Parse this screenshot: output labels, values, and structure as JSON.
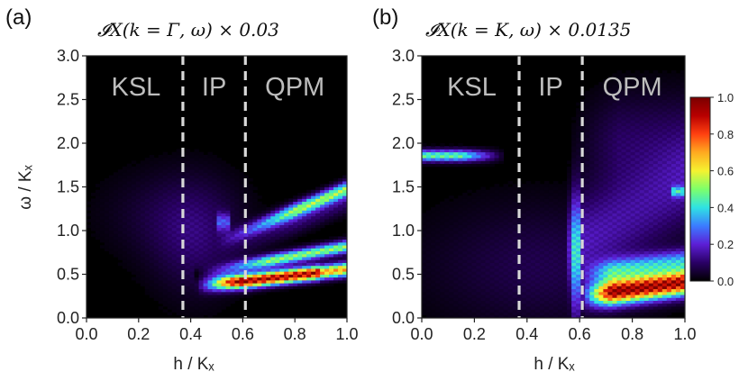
{
  "chart_data": [
    {
      "type": "heatmap",
      "panel_label": "(a)",
      "title": "𝓘X(k = Γ, ω) × 0.03",
      "xlabel": "h / Kₓ",
      "ylabel": "ω / Kₓ",
      "xlim": [
        0.0,
        1.0
      ],
      "ylim": [
        0.0,
        3.0
      ],
      "xticks": [
        "0.0",
        "0.2",
        "0.4",
        "0.6",
        "0.8",
        "1.0"
      ],
      "yticks": [
        "0.0",
        "0.5",
        "1.0",
        "1.5",
        "2.0",
        "2.5",
        "3.0"
      ],
      "phase_boundaries": [
        0.37,
        0.61
      ],
      "regions": [
        {
          "label": "KSL",
          "x": 0.19
        },
        {
          "label": "IP",
          "x": 0.49
        },
        {
          "label": "QPM",
          "x": 0.8
        }
      ],
      "features": [
        {
          "kind": "band",
          "x": [
            0.55,
            1.0
          ],
          "omega": [
            0.95,
            1.55
          ],
          "peak": 0.55
        },
        {
          "kind": "band",
          "x": [
            0.45,
            1.0
          ],
          "omega": [
            0.4,
            0.85
          ],
          "peak": 1.0
        },
        {
          "kind": "band",
          "x": [
            0.5,
            1.0
          ],
          "omega": [
            0.28,
            0.45
          ],
          "peak": 0.6
        },
        {
          "kind": "diffuse",
          "x": [
            0.25,
            0.6
          ],
          "omega": [
            0.4,
            1.4
          ],
          "peak": 0.12
        }
      ]
    },
    {
      "type": "heatmap",
      "panel_label": "(b)",
      "title": "𝓘X(k = K, ω) × 0.0135",
      "xlabel": "h / Kₓ",
      "ylabel": "",
      "xlim": [
        0.0,
        1.0
      ],
      "ylim": [
        0.0,
        3.0
      ],
      "xticks": [
        "0.0",
        "0.2",
        "0.4",
        "0.6",
        "0.8",
        "1.0"
      ],
      "yticks": [
        "0.0",
        "0.5",
        "1.0",
        "1.5",
        "2.0",
        "2.5",
        "3.0"
      ],
      "phase_boundaries": [
        0.37,
        0.61
      ],
      "regions": [
        {
          "label": "KSL",
          "x": 0.19
        },
        {
          "label": "IP",
          "x": 0.49
        },
        {
          "label": "QPM",
          "x": 0.8
        }
      ],
      "features": [
        {
          "kind": "band",
          "x": [
            0.0,
            0.3
          ],
          "omega": [
            1.8,
            1.92
          ],
          "peak": 0.5
        },
        {
          "kind": "band",
          "x": [
            0.6,
            1.0
          ],
          "omega": [
            0.15,
            0.75
          ],
          "peak": 1.0
        },
        {
          "kind": "diffuse",
          "x": [
            0.55,
            1.0
          ],
          "omega": [
            0.9,
            2.6
          ],
          "peak": 0.15
        },
        {
          "kind": "diffuse",
          "x": [
            0.0,
            0.6
          ],
          "omega": [
            0.1,
            1.0
          ],
          "peak": 0.1
        }
      ]
    }
  ],
  "colorbar": {
    "min": 0.0,
    "max": 1.0,
    "ticks": [
      "0.0",
      "0.2",
      "0.4",
      "0.6",
      "0.8",
      "1.0"
    ],
    "colors": [
      "#000000",
      "#2a0066",
      "#5c1fd6",
      "#3b7cff",
      "#2fe3e3",
      "#7dff6a",
      "#f5f230",
      "#ffaa20",
      "#ff4010",
      "#b80000",
      "#7a0000"
    ]
  }
}
